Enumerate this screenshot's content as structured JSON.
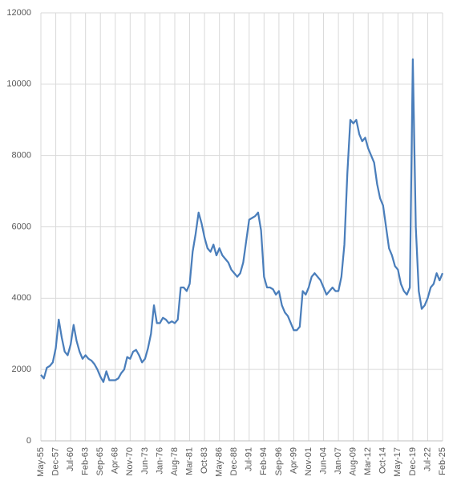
{
  "chart_data": {
    "type": "line",
    "categories": [
      "May-55",
      null,
      null,
      null,
      null,
      "Dec-57",
      null,
      null,
      null,
      null,
      "Jul-60",
      null,
      null,
      null,
      null,
      "Feb-63",
      null,
      null,
      null,
      null,
      "Sep-65",
      null,
      null,
      null,
      null,
      "Apr-68",
      null,
      null,
      null,
      null,
      "Nov-70",
      null,
      null,
      null,
      null,
      "Jun-73",
      null,
      null,
      null,
      null,
      "Jan-76",
      null,
      null,
      null,
      null,
      "Aug-78",
      null,
      null,
      null,
      null,
      "Mar-81",
      null,
      null,
      null,
      null,
      "Oct-83",
      null,
      null,
      null,
      null,
      "May-86",
      null,
      null,
      null,
      null,
      "Dec-88",
      null,
      null,
      null,
      null,
      "Jul-91",
      null,
      null,
      null,
      null,
      "Feb-94",
      null,
      null,
      null,
      null,
      "Sep-96",
      null,
      null,
      null,
      null,
      "Apr-99",
      null,
      null,
      null,
      null,
      "Nov-01",
      null,
      null,
      null,
      null,
      "Jun-04",
      null,
      null,
      null,
      null,
      "Jan-07",
      null,
      null,
      null,
      null,
      "Aug-09",
      null,
      null,
      null,
      null,
      "Mar-12",
      null,
      null,
      null,
      null,
      "Oct-14",
      null,
      null,
      null,
      null,
      "May-17",
      null,
      null,
      null,
      null,
      "Dec-19",
      null,
      null,
      null,
      null,
      "Jul-22",
      null,
      null,
      null,
      null,
      "Feb-25"
    ],
    "values": [
      1850,
      1750,
      2050,
      2100,
      2200,
      2600,
      3400,
      2900,
      2500,
      2400,
      2700,
      3250,
      2800,
      2500,
      2300,
      2400,
      2300,
      2250,
      2150,
      2000,
      1800,
      1650,
      1950,
      1700,
      1700,
      1700,
      1750,
      1900,
      2000,
      2350,
      2300,
      2500,
      2550,
      2400,
      2200,
      2300,
      2600,
      3000,
      3800,
      3300,
      3300,
      3450,
      3400,
      3300,
      3350,
      3300,
      3400,
      4300,
      4300,
      4200,
      4400,
      5300,
      5800,
      6400,
      6100,
      5700,
      5400,
      5300,
      5500,
      5200,
      5400,
      5200,
      5100,
      5000,
      4800,
      4700,
      4600,
      4700,
      5000,
      5600,
      6200,
      6250,
      6300,
      6400,
      5900,
      4600,
      4300,
      4300,
      4250,
      4100,
      4200,
      3800,
      3600,
      3500,
      3300,
      3100,
      3100,
      3200,
      4200,
      4100,
      4300,
      4600,
      4700,
      4600,
      4500,
      4300,
      4100,
      4200,
      4300,
      4200,
      4200,
      4600,
      5500,
      7500,
      9000,
      8900,
      9000,
      8600,
      8400,
      8500,
      8200,
      8000,
      7800,
      7200,
      6800,
      6600,
      6000,
      5400,
      5200,
      4900,
      4800,
      4400,
      4200,
      4100,
      4300,
      10700,
      6000,
      4200,
      3700,
      3800,
      4000,
      4300,
      4400,
      4700,
      4500,
      4700
    ],
    "color": "#4a7ebb",
    "ylim": [
      0,
      12000
    ],
    "yticks": [
      0,
      2000,
      4000,
      6000,
      8000,
      10000,
      12000
    ],
    "grid": true
  }
}
